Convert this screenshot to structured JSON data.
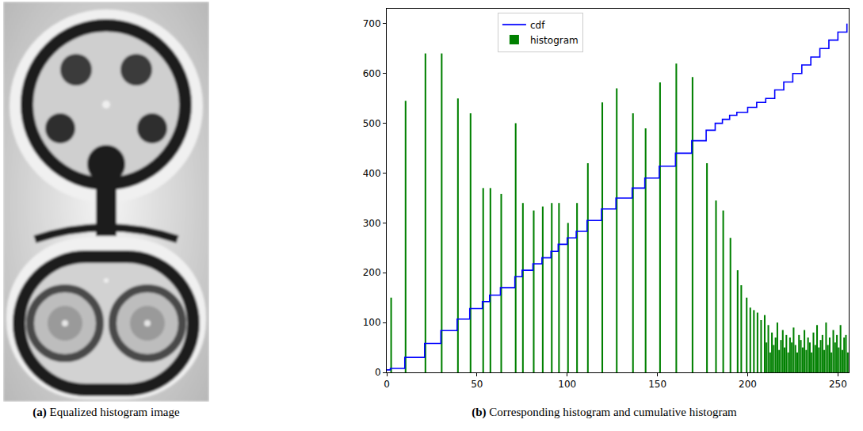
{
  "image": {
    "label": "(a)",
    "caption": "Equalized histogram image"
  },
  "chart_data": {
    "type": "bar",
    "label": "(b)",
    "caption": "Corresponding histogram and cumulative histogram",
    "xlim": [
      0,
      256
    ],
    "xticks": [
      0,
      50,
      100,
      150,
      200,
      250
    ],
    "ylim": [
      0,
      730
    ],
    "yticks": [
      0,
      100,
      200,
      300,
      400,
      500,
      600,
      700
    ],
    "grid": false,
    "legend": "top",
    "series": [
      {
        "name": "cdf",
        "type": "line",
        "line_style": "step",
        "color": "#0000ff",
        "x": [
          0,
          2,
          10,
          21,
          30,
          39,
          46,
          53,
          57,
          63,
          71,
          75,
          81,
          86,
          91,
          95,
          100,
          105,
          111,
          119,
          127,
          136,
          143,
          151,
          160,
          169,
          177,
          182,
          186,
          190,
          194,
          200,
          205,
          210,
          215,
          220,
          225,
          230,
          235,
          240,
          245,
          250,
          255
        ],
        "values": [
          5,
          8,
          30,
          58,
          84,
          107,
          128,
          142,
          155,
          170,
          192,
          205,
          218,
          230,
          243,
          257,
          270,
          283,
          305,
          328,
          350,
          370,
          390,
          414,
          440,
          465,
          486,
          500,
          508,
          516,
          522,
          532,
          542,
          550,
          567,
          583,
          600,
          617,
          633,
          650,
          667,
          683,
          700
        ]
      },
      {
        "name": "histogram",
        "type": "bar",
        "color": "#008000",
        "x": [
          2,
          10,
          21,
          30,
          39,
          46,
          53,
          57,
          63,
          71,
          75,
          81,
          86,
          91,
          95,
          100,
          105,
          111,
          119,
          127,
          136,
          143,
          151,
          160,
          169,
          177,
          182,
          186,
          190,
          194,
          196,
          199,
          201,
          203,
          205,
          207,
          209,
          210,
          211,
          212,
          213,
          214,
          215,
          216,
          217,
          218,
          219,
          220,
          221,
          222,
          223,
          224,
          225,
          226,
          227,
          228,
          229,
          230,
          231,
          232,
          233,
          234,
          235,
          236,
          237,
          238,
          239,
          240,
          241,
          242,
          243,
          244,
          245,
          246,
          247,
          248,
          249,
          250,
          251,
          252,
          253,
          254,
          255
        ],
        "values": [
          150,
          545,
          640,
          640,
          550,
          520,
          370,
          370,
          358,
          500,
          340,
          325,
          333,
          340,
          340,
          300,
          340,
          420,
          542,
          570,
          520,
          490,
          582,
          620,
          593,
          420,
          345,
          325,
          270,
          205,
          175,
          150,
          130,
          125,
          120,
          105,
          115,
          60,
          95,
          40,
          80,
          55,
          70,
          100,
          45,
          65,
          85,
          50,
          75,
          40,
          70,
          60,
          90,
          55,
          40,
          75,
          65,
          50,
          85,
          45,
          70,
          60,
          40,
          80,
          55,
          95,
          50,
          65,
          75,
          45,
          100,
          55,
          70,
          40,
          85,
          60,
          75,
          50,
          95,
          45,
          70,
          75,
          40
        ]
      }
    ]
  }
}
